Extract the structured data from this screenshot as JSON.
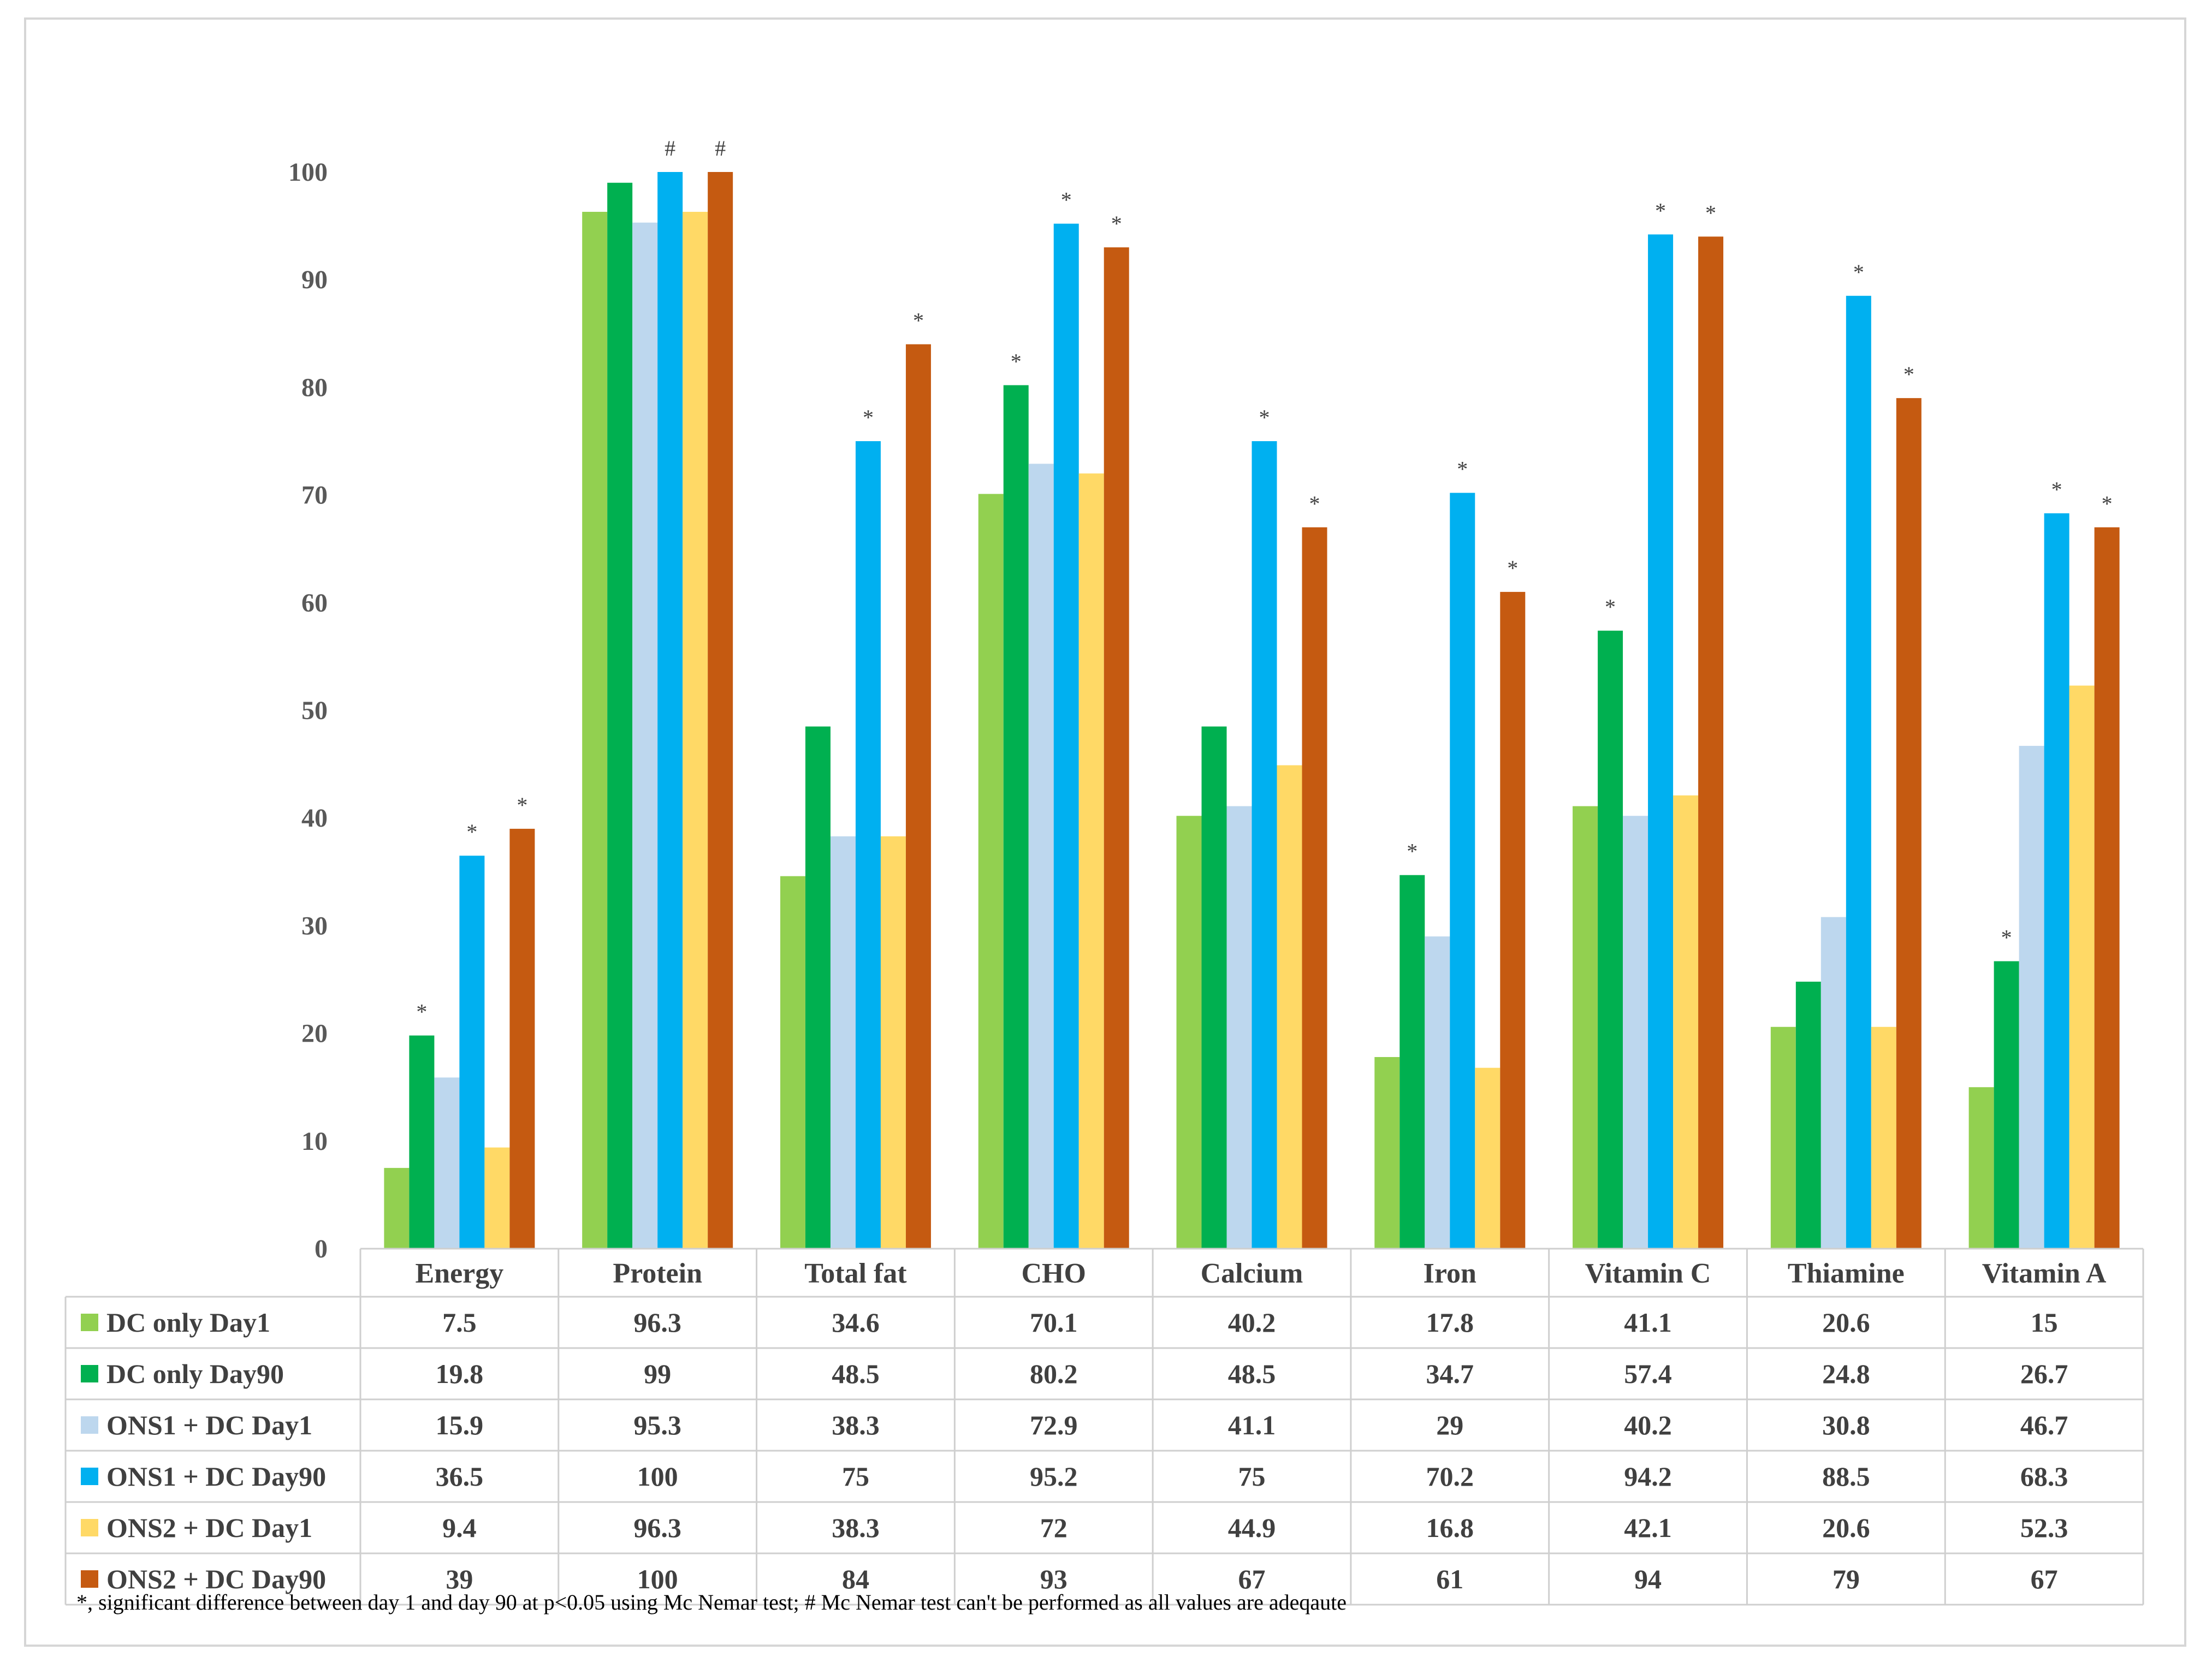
{
  "chart_data": {
    "type": "bar",
    "categories": [
      "Energy",
      "Protein",
      "Total fat",
      "CHO",
      "Calcium",
      "Iron",
      "Vitamin C",
      "Thiamine",
      "Vitamin A"
    ],
    "ylim": [
      0,
      100
    ],
    "yticks": [
      0,
      10,
      20,
      30,
      40,
      50,
      60,
      70,
      80,
      90,
      100
    ],
    "grid": false,
    "legend": "data-table-below",
    "series": [
      {
        "name": "DC only Day1",
        "color": "#92d050",
        "values": [
          7.5,
          96.3,
          34.6,
          70.1,
          40.2,
          17.8,
          41.1,
          20.6,
          15
        ],
        "labels": [
          "7.5",
          "96.3",
          "34.6",
          "70.1",
          "40.2",
          "17.8",
          "41.1",
          "20.6",
          "15"
        ],
        "marks": [
          "",
          "",
          "",
          "",
          "",
          "",
          "",
          "",
          ""
        ]
      },
      {
        "name": "DC only Day90",
        "color": "#00b050",
        "values": [
          19.8,
          99,
          48.5,
          80.2,
          48.5,
          34.7,
          57.4,
          24.8,
          26.7
        ],
        "labels": [
          "19.8",
          "99",
          "48.5",
          "80.2",
          "48.5",
          "34.7",
          "57.4",
          "24.8",
          "26.7"
        ],
        "marks": [
          "*",
          "",
          "",
          "*",
          "",
          "*",
          "*",
          "",
          "*"
        ]
      },
      {
        "name": "ONS1 + DC Day1",
        "color": "#bdd7ee",
        "values": [
          15.9,
          95.3,
          38.3,
          72.9,
          41.1,
          29,
          40.2,
          30.8,
          46.7
        ],
        "labels": [
          "15.9",
          "95.3",
          "38.3",
          "72.9",
          "41.1",
          "29",
          "40.2",
          "30.8",
          "46.7"
        ],
        "marks": [
          "",
          "",
          "",
          "",
          "",
          "",
          "",
          "",
          ""
        ]
      },
      {
        "name": "ONS1 + DC Day90",
        "color": "#00b0f0",
        "values": [
          36.5,
          100,
          75,
          95.2,
          75,
          70.2,
          94.2,
          88.5,
          68.3
        ],
        "labels": [
          "36.5",
          "100",
          "75",
          "95.2",
          "75",
          "70.2",
          "94.2",
          "88.5",
          "68.3"
        ],
        "marks": [
          "*",
          "#",
          "*",
          "*",
          "*",
          "*",
          "*",
          "*",
          "*"
        ]
      },
      {
        "name": "ONS2 + DC Day1",
        "color": "#ffd966",
        "values": [
          9.4,
          96.3,
          38.3,
          72,
          44.9,
          16.8,
          42.1,
          20.6,
          52.3
        ],
        "labels": [
          "9.4",
          "96.3",
          "38.3",
          "72",
          "44.9",
          "16.8",
          "42.1",
          "20.6",
          "52.3"
        ],
        "marks": [
          "",
          "",
          "",
          "",
          "",
          "",
          "",
          "",
          ""
        ]
      },
      {
        "name": "ONS2 + DC Day90",
        "color": "#c55a11",
        "values": [
          39,
          100,
          84,
          93,
          67,
          61,
          94,
          79,
          67
        ],
        "labels": [
          "39",
          "100",
          "84",
          "93",
          "67",
          "61",
          "94",
          "79",
          "67"
        ],
        "marks": [
          "*",
          "#",
          "*",
          "*",
          "*",
          "*",
          "*",
          "*",
          "*"
        ]
      }
    ],
    "footnote": "*, significant difference between day 1 and day 90 at p<0.05 using Mc Nemar test; # Mc Nemar test can't be performed as all values are adeqaute"
  }
}
